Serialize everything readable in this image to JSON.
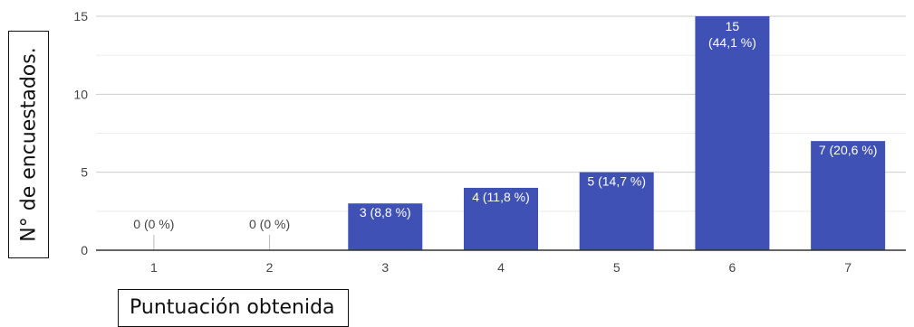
{
  "chart_data": {
    "type": "bar",
    "categories": [
      "1",
      "2",
      "3",
      "4",
      "5",
      "6",
      "7"
    ],
    "values": [
      0,
      0,
      3,
      4,
      5,
      15,
      7
    ],
    "data_labels": [
      "0 (0 %)",
      "0 (0 %)",
      "3 (8,8 %)",
      "4 (11,8 %)",
      "5 (14,7 %)",
      [
        "15",
        "(44,1 %)"
      ],
      "7 (20,6 %)"
    ],
    "y_ticks": [
      "0",
      "5",
      "10",
      "15"
    ],
    "ylim": [
      0,
      15
    ],
    "xlabel": "Puntuación obtenida",
    "ylabel": "N° de encuestados.",
    "grid": true,
    "colors": {
      "bar": "#3f51b5",
      "grid_major": "#cccccc",
      "grid_minor": "#ececec",
      "axis": "#333333",
      "tick_text": "#444444",
      "data_label": "#ffffff",
      "zero_label": "#444444"
    }
  }
}
